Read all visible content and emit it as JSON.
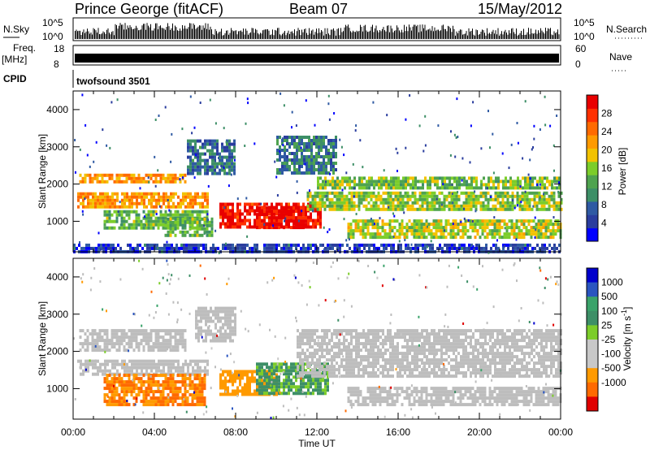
{
  "header": {
    "station": "Prince George (fitACF)",
    "beam": "Beam 07",
    "date": "15/May/2012"
  },
  "top_panels": {
    "nsky_label": "N.Sky",
    "nsearch_label": "N.Search",
    "nsky_ticks": [
      "10^5",
      "10^0"
    ],
    "nsearch_ticks": [
      "10^5",
      "10^0"
    ],
    "freq_label": "Freq.",
    "freq_unit": "[MHz]",
    "freq_ticks": [
      "18",
      "8"
    ],
    "nave_label": "Nave",
    "nave_ticks": [
      "60",
      "0"
    ],
    "cpid_label": "CPID",
    "cpid_value": "twofsound 3501"
  },
  "colors": {
    "power_scale": [
      "#0000ff",
      "#2a3d9e",
      "#2f5aa3",
      "#3d8f67",
      "#4fa34f",
      "#7ccd2a",
      "#f2c200",
      "#ff9a00",
      "#ff6a00",
      "#ff3000",
      "#e80000"
    ],
    "velocity_scale": [
      "#e00000",
      "#ff6a00",
      "#ff9a00",
      "#c8c8c8",
      "#c8c8c8",
      "#7ccd2a",
      "#3d8f67",
      "#3aa36a",
      "#2a55c0",
      "#0000cc"
    ],
    "ground_scatter": "#bdbdbd"
  },
  "chart_data": [
    {
      "type": "heatmap",
      "name": "power",
      "ylabel": "Slant Range [km]",
      "xlabel": "Time UT",
      "x_ticks": [
        "00:00",
        "04:00",
        "08:00",
        "12:00",
        "16:00",
        "20:00",
        "00:00"
      ],
      "x_range_hours": [
        0,
        24
      ],
      "y_ticks": [
        "1000",
        "2000",
        "3000",
        "4000"
      ],
      "ylim": [
        180,
        4500
      ],
      "colorbar": {
        "label": "Power [dB]",
        "ticks": [
          "4",
          "8",
          "12",
          "16",
          "20",
          "24",
          "28"
        ],
        "range": [
          0,
          32
        ]
      },
      "bands": [
        {
          "t0": 0.2,
          "t1": 6.6,
          "r0": 1380,
          "r1": 1780,
          "value": 22
        },
        {
          "t0": 0.3,
          "t1": 5.5,
          "r0": 2020,
          "r1": 2280,
          "value": 22
        },
        {
          "t0": 1.5,
          "t1": 6.6,
          "r0": 800,
          "r1": 1300,
          "value": 14
        },
        {
          "t0": 4.5,
          "t1": 6.8,
          "r0": 650,
          "r1": 1100,
          "value": 14
        },
        {
          "t0": 7.2,
          "t1": 12.2,
          "r0": 850,
          "r1": 1500,
          "value": 30
        },
        {
          "t0": 9.0,
          "t1": 11.5,
          "r0": 800,
          "r1": 1400,
          "value": 31
        },
        {
          "t0": 11.5,
          "t1": 24.0,
          "r0": 1300,
          "r1": 1800,
          "value": 16
        },
        {
          "t0": 12.0,
          "t1": 24.0,
          "r0": 1900,
          "r1": 2200,
          "value": 15
        },
        {
          "t0": 13.5,
          "t1": 24.0,
          "r0": 600,
          "r1": 1050,
          "value": 17
        },
        {
          "t0": 5.6,
          "t1": 8.0,
          "r0": 2300,
          "r1": 3200,
          "value": 8
        },
        {
          "t0": 10.0,
          "t1": 13.0,
          "r0": 2300,
          "r1": 3300,
          "value": 9
        },
        {
          "t0": 0.0,
          "t1": 24.0,
          "r0": 200,
          "r1": 400,
          "value": 5
        }
      ]
    },
    {
      "type": "heatmap",
      "name": "velocity",
      "ylabel": "Slant Range [km]",
      "xlabel": "Time UT",
      "x_ticks": [
        "00:00",
        "04:00",
        "08:00",
        "12:00",
        "16:00",
        "20:00",
        "00:00"
      ],
      "x_range_hours": [
        0,
        24
      ],
      "y_ticks": [
        "1000",
        "2000",
        "3000",
        "4000"
      ],
      "ylim": [
        180,
        4500
      ],
      "colorbar": {
        "label": "Velocity [m s^-1]",
        "ticks": [
          "1000",
          "500",
          "100",
          "25",
          "-25",
          "-100",
          "-500",
          "-1000"
        ]
      },
      "bands": [
        {
          "t0": 0.2,
          "t1": 6.6,
          "r0": 1380,
          "r1": 1780,
          "value": 0,
          "ground": true
        },
        {
          "t0": 0.3,
          "t1": 5.5,
          "r0": 2000,
          "r1": 2600,
          "value": 0,
          "ground": true
        },
        {
          "t0": 1.5,
          "t1": 6.5,
          "r0": 600,
          "r1": 1400,
          "value": -500
        },
        {
          "t0": 7.2,
          "t1": 10.0,
          "r0": 850,
          "r1": 1500,
          "value": -200
        },
        {
          "t0": 9.0,
          "t1": 12.5,
          "r0": 850,
          "r1": 1700,
          "value": 150
        },
        {
          "t0": 11.0,
          "t1": 24.0,
          "r0": 1300,
          "r1": 2600,
          "value": 0,
          "ground": true
        },
        {
          "t0": 13.5,
          "t1": 24.0,
          "r0": 600,
          "r1": 1050,
          "value": 0,
          "ground": true
        },
        {
          "t0": 6.0,
          "t1": 8.0,
          "r0": 2300,
          "r1": 3200,
          "value": 0,
          "ground": true
        }
      ]
    }
  ]
}
